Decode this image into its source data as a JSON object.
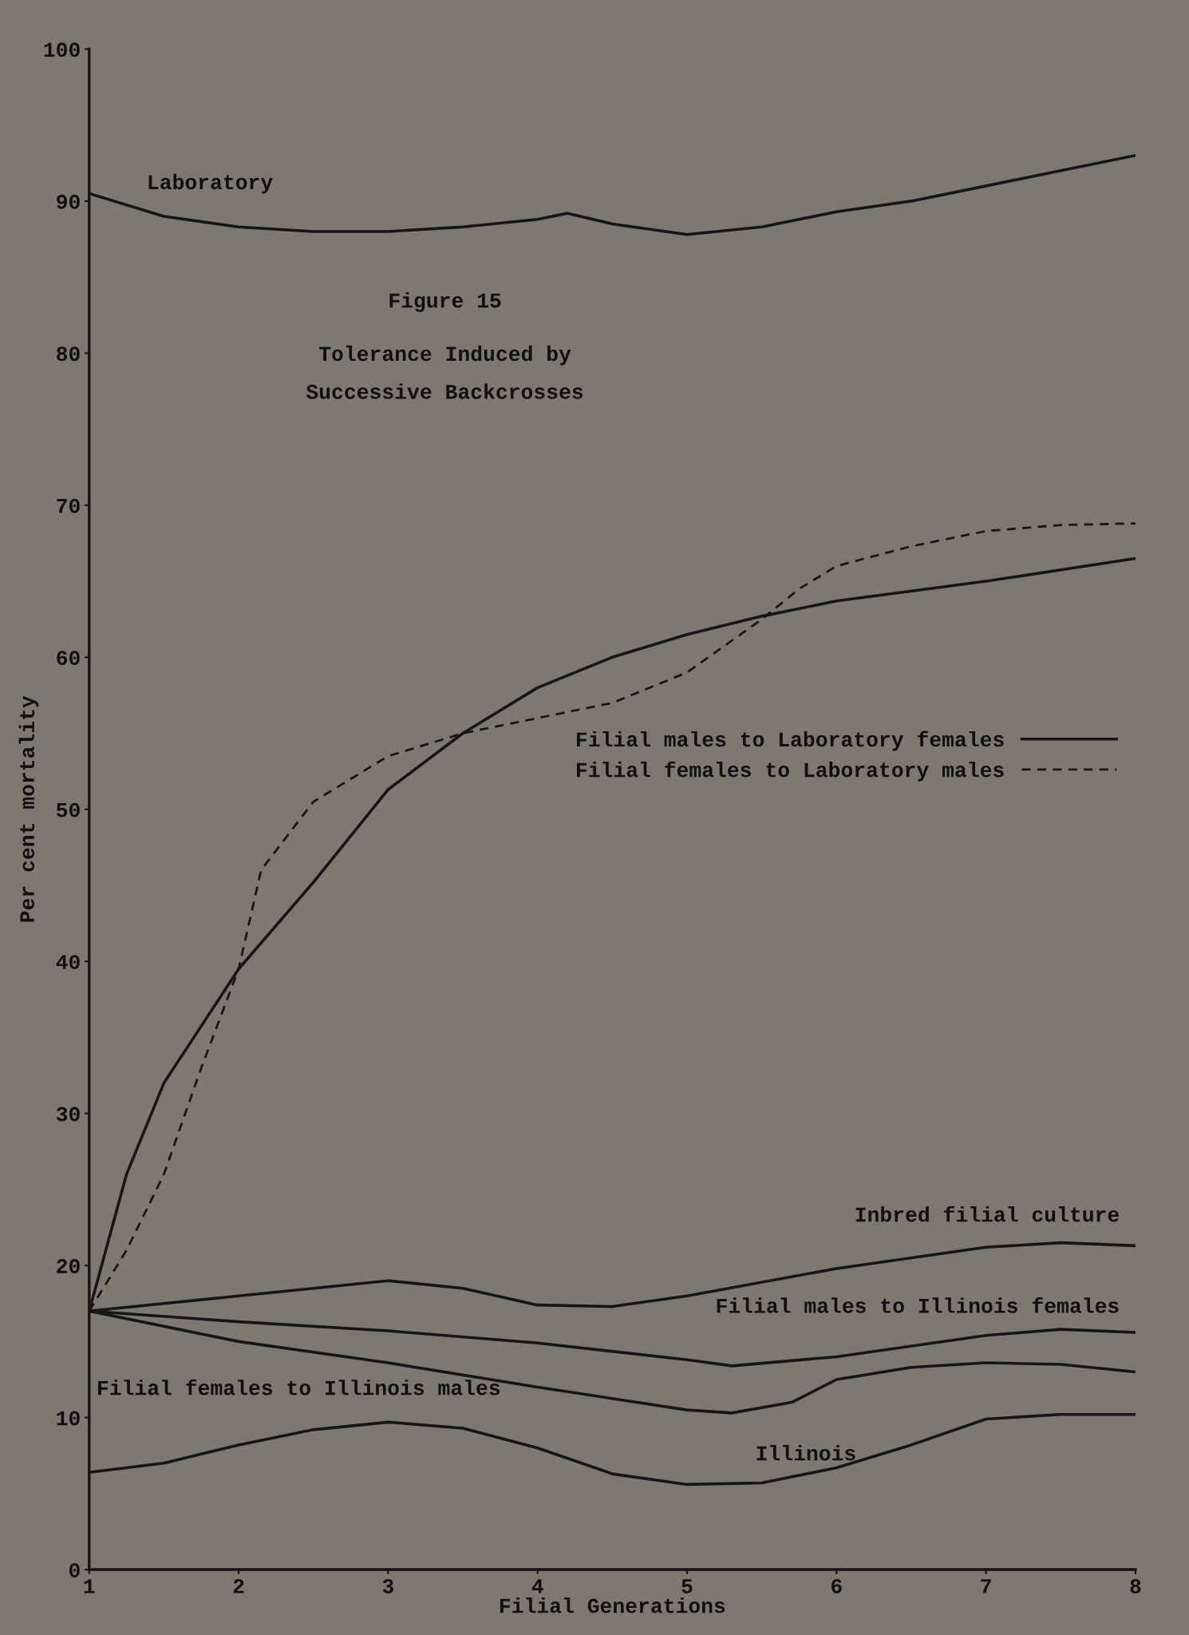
{
  "chart_data": {
    "type": "line",
    "title": "Figure 15",
    "subtitle": "Tolerance Induced by\nSuccessive Backcrosses",
    "xlabel": "Filial Generations",
    "ylabel": "Per cent mortality",
    "xlim": [
      1,
      8
    ],
    "ylim": [
      0,
      100
    ],
    "xticks": [
      1,
      2,
      3,
      4,
      5,
      6,
      7,
      8
    ],
    "yticks": [
      0,
      10,
      20,
      30,
      40,
      50,
      60,
      70,
      80,
      90,
      100
    ],
    "grid": false,
    "legend": "right",
    "marker": "none",
    "series": [
      {
        "color": "#161616",
        "line_style": "solid",
        "x": [
          1,
          1.5,
          2,
          2.5,
          3,
          3.5,
          4,
          4.2,
          4.5,
          5,
          5.5,
          6,
          6.5,
          7,
          7.5,
          8
        ],
        "values": [
          90.5,
          89,
          88.3,
          88,
          88,
          88.3,
          88.8,
          89.2,
          88.5,
          87.8,
          88.3,
          89.3,
          90,
          91,
          92,
          93
        ]
      },
      {
        "name": "Filial males to Laboratory females",
        "color": "#161616",
        "line_style": "solid",
        "x": [
          1,
          1.25,
          1.5,
          2,
          2.5,
          3,
          3.5,
          4,
          4.5,
          5,
          5.5,
          6,
          7,
          8
        ],
        "values": [
          17,
          26,
          32,
          39.5,
          45.2,
          51.3,
          55,
          58,
          60,
          61.5,
          62.7,
          63.7,
          65,
          66.5
        ]
      },
      {
        "name": "Filial females to Laboratory males",
        "color": "#161616",
        "line_style": "dashed",
        "x": [
          1,
          1.25,
          1.5,
          1.75,
          2,
          2.15,
          2.5,
          3,
          3.5,
          4,
          4.5,
          5,
          5.5,
          5.75,
          6,
          6.5,
          7,
          7.5,
          8
        ],
        "values": [
          17,
          21,
          26,
          33,
          39.5,
          46,
          50.5,
          53.5,
          55,
          56,
          57,
          59,
          62.5,
          64.5,
          66,
          67.3,
          68.3,
          68.7,
          68.8
        ]
      },
      {
        "color": "#161616",
        "line_style": "solid",
        "x": [
          1,
          2,
          3,
          3.5,
          4,
          4.5,
          5,
          6,
          7,
          7.5,
          8
        ],
        "values": [
          17,
          18,
          19,
          18.5,
          17.4,
          17.3,
          18,
          19.8,
          21.2,
          21.5,
          21.3
        ]
      },
      {
        "color": "#161616",
        "line_style": "solid",
        "x": [
          1,
          2,
          3,
          4,
          5,
          5.3,
          6,
          7,
          7.5,
          8
        ],
        "values": [
          17,
          16.3,
          15.7,
          14.9,
          13.8,
          13.4,
          14,
          15.4,
          15.8,
          15.6
        ]
      },
      {
        "color": "#161616",
        "line_style": "solid",
        "x": [
          1,
          2,
          3,
          4,
          5,
          5.3,
          5.7,
          6,
          6.5,
          7,
          7.5,
          8
        ],
        "values": [
          17,
          15,
          13.6,
          12,
          10.5,
          10.3,
          11,
          12.5,
          13.3,
          13.6,
          13.5,
          13
        ]
      },
      {
        "color": "#161616",
        "line_style": "solid",
        "x": [
          1,
          1.5,
          2,
          2.5,
          3,
          3.5,
          4,
          4.5,
          5,
          5.5,
          6,
          6.5,
          7,
          7.5,
          8
        ],
        "values": [
          6.4,
          7,
          8.2,
          9.2,
          9.7,
          9.3,
          8,
          6.3,
          5.6,
          5.7,
          6.7,
          8.2,
          9.9,
          10.2,
          10.2
        ]
      }
    ],
    "annotations": [
      "Laboratory",
      "Inbred filial culture",
      "Filial males to Illinois females",
      "Filial females to Illinois males",
      "Illinois"
    ]
  }
}
